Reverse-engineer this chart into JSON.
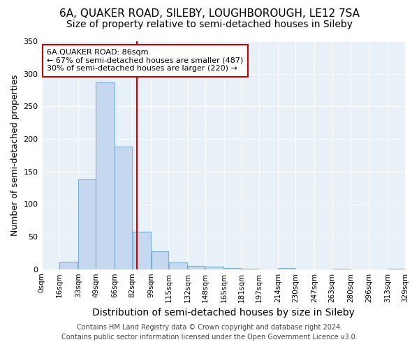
{
  "title": "6A, QUAKER ROAD, SILEBY, LOUGHBOROUGH, LE12 7SA",
  "subtitle": "Size of property relative to semi-detached houses in Sileby",
  "xlabel": "Distribution of semi-detached houses by size in Sileby",
  "ylabel": "Number of semi-detached properties",
  "footnote1": "Contains HM Land Registry data © Crown copyright and database right 2024.",
  "footnote2": "Contains public sector information licensed under the Open Government Licence v3.0.",
  "bar_edges": [
    0,
    16,
    33,
    49,
    66,
    82,
    99,
    115,
    132,
    148,
    165,
    181,
    197,
    214,
    230,
    247,
    263,
    280,
    296,
    313,
    329
  ],
  "bar_heights": [
    0,
    11,
    138,
    287,
    188,
    58,
    27,
    10,
    5,
    4,
    2,
    1,
    0,
    2,
    0,
    0,
    1,
    0,
    0,
    1
  ],
  "tick_labels": [
    "0sqm",
    "16sqm",
    "33sqm",
    "49sqm",
    "66sqm",
    "82sqm",
    "99sqm",
    "115sqm",
    "132sqm",
    "148sqm",
    "165sqm",
    "181sqm",
    "197sqm",
    "214sqm",
    "230sqm",
    "247sqm",
    "263sqm",
    "280sqm",
    "296sqm",
    "313sqm",
    "329sqm"
  ],
  "bar_color": "#c5d8f0",
  "bar_edge_color": "#7bafd4",
  "property_line_x": 86,
  "property_line_color": "#cc0000",
  "annotation_text": "6A QUAKER ROAD: 86sqm\n← 67% of semi-detached houses are smaller (487)\n30% of semi-detached houses are larger (220) →",
  "annotation_box_color": "#ffffff",
  "annotation_box_edge": "#cc0000",
  "ylim": [
    0,
    350
  ],
  "yticks": [
    0,
    50,
    100,
    150,
    200,
    250,
    300,
    350
  ],
  "background_color": "#ffffff",
  "plot_bg_color": "#e8f0f8",
  "grid_color": "#ffffff",
  "title_fontsize": 11,
  "subtitle_fontsize": 10,
  "xlabel_fontsize": 10,
  "ylabel_fontsize": 9,
  "footnote_fontsize": 7
}
